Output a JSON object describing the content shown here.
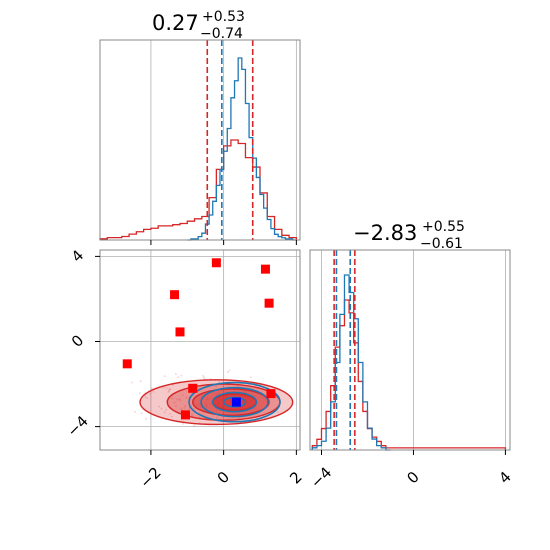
{
  "chart_data": {
    "type": "corner",
    "parameters": [
      {
        "title": {
          "median": "0.27",
          "plus": "+0.53",
          "minus": "−0.74"
        },
        "range": [
          -3.4,
          2.1
        ],
        "ticks": [
          -2,
          0,
          2
        ],
        "tick_labels": [
          "−2",
          "0",
          "2"
        ],
        "markers": {
          "blue": [
            -0.05
          ],
          "red": [
            -0.45,
            0.8
          ]
        },
        "hist_blue": {
          "bins": [
            -1.0,
            -0.9,
            -0.8,
            -0.7,
            -0.6,
            -0.5,
            -0.4,
            -0.3,
            -0.2,
            -0.1,
            0.0,
            0.1,
            0.2,
            0.3,
            0.4,
            0.5,
            0.6,
            0.7,
            0.8,
            0.9,
            1.0,
            1.1,
            1.2,
            1.3,
            1.4,
            1.5,
            1.6,
            1.7,
            1.8,
            1.9,
            2.0
          ],
          "counts": [
            0,
            1,
            1,
            3,
            6,
            14,
            22,
            34,
            48,
            62,
            78,
            98,
            125,
            140,
            160,
            150,
            120,
            90,
            72,
            55,
            40,
            28,
            18,
            10,
            5,
            3,
            2,
            1,
            1,
            0
          ]
        },
        "hist_red": {
          "bins": [
            -3.4,
            -3.2,
            -3.0,
            -2.8,
            -2.6,
            -2.4,
            -2.2,
            -2.0,
            -1.8,
            -1.6,
            -1.4,
            -1.2,
            -1.0,
            -0.8,
            -0.6,
            -0.4,
            -0.2,
            0.0,
            0.2,
            0.4,
            0.6,
            0.8,
            1.0,
            1.2,
            1.4,
            1.6,
            1.8,
            2.0
          ],
          "counts": [
            1,
            2,
            2,
            3,
            5,
            7,
            9,
            10,
            12,
            12,
            13,
            14,
            16,
            18,
            20,
            36,
            60,
            80,
            85,
            82,
            70,
            62,
            40,
            20,
            9,
            4,
            2
          ]
        }
      },
      {
        "title": {
          "median": "−2.83",
          "plus": "+0.55",
          "minus": "−0.61"
        },
        "range": [
          -4.5,
          4.2
        ],
        "ticks": [
          -4,
          0,
          4
        ],
        "tick_labels": [
          "−4",
          "0",
          "4"
        ],
        "markers": {
          "blue": [
            -2.75,
            -3.35
          ],
          "red": [
            -3.45,
            -2.55
          ]
        },
        "hist_blue": {
          "bins": [
            -4.4,
            -4.2,
            -4.0,
            -3.8,
            -3.6,
            -3.4,
            -3.2,
            -3.0,
            -2.8,
            -2.6,
            -2.4,
            -2.2,
            -2.0,
            -1.8,
            -1.6,
            -1.4,
            -1.2,
            -1.0
          ],
          "counts": [
            1,
            2,
            4,
            10,
            22,
            40,
            62,
            80,
            72,
            60,
            40,
            22,
            10,
            5,
            2,
            1,
            0
          ]
        },
        "hist_red": {
          "bins": [
            -4.4,
            -4.2,
            -4.0,
            -3.8,
            -3.6,
            -3.4,
            -3.2,
            -3.0,
            -2.8,
            -2.6,
            -2.4,
            -2.2,
            -2.0,
            -1.8,
            -1.6,
            -1.4,
            -1.2,
            -1.0,
            0.0,
            2.0,
            4.0
          ],
          "counts": [
            2,
            5,
            10,
            18,
            30,
            48,
            58,
            70,
            64,
            50,
            32,
            18,
            10,
            6,
            4,
            2,
            1,
            1,
            1,
            1
          ]
        }
      }
    ],
    "scatter_2d": {
      "x_ticks": [
        -2,
        0,
        2
      ],
      "x_tick_labels": [
        "−2",
        "0",
        "2"
      ],
      "y_ticks": [
        -4,
        0,
        4
      ],
      "y_tick_labels": [
        "−4",
        "0",
        "4"
      ],
      "x_range": [
        -3.4,
        2.1
      ],
      "y_range": [
        -5.1,
        4.3
      ],
      "red_squares": [
        {
          "x": -0.2,
          "y": 3.7
        },
        {
          "x": 1.15,
          "y": 3.4
        },
        {
          "x": -1.35,
          "y": 2.2
        },
        {
          "x": 1.25,
          "y": 1.8
        },
        {
          "x": -1.2,
          "y": 0.45
        },
        {
          "x": -2.65,
          "y": -1.05
        },
        {
          "x": -0.85,
          "y": -2.2
        },
        {
          "x": 1.3,
          "y": -2.45
        },
        {
          "x": -1.05,
          "y": -3.45
        }
      ],
      "blue_square": {
        "x": 0.35,
        "y": -2.85
      },
      "red_contours": [
        {
          "cx": -0.2,
          "cy": -2.85,
          "rx": 2.1,
          "ry": 1.05
        },
        {
          "cx": 0.0,
          "cy": -2.85,
          "rx": 1.55,
          "ry": 0.85
        },
        {
          "cx": 0.2,
          "cy": -2.85,
          "rx": 1.05,
          "ry": 0.62
        },
        {
          "cx": 0.3,
          "cy": -2.85,
          "rx": 0.6,
          "ry": 0.38
        }
      ],
      "blue_contours": [
        {
          "cx": 0.3,
          "cy": -2.85,
          "rx": 1.25,
          "ry": 0.92
        },
        {
          "cx": 0.3,
          "cy": -2.85,
          "rx": 0.92,
          "ry": 0.68
        },
        {
          "cx": 0.3,
          "cy": -2.85,
          "rx": 0.6,
          "ry": 0.45
        },
        {
          "cx": 0.3,
          "cy": -2.85,
          "rx": 0.3,
          "ry": 0.22
        }
      ]
    },
    "colors": {
      "blue": "#1f77b4",
      "red": "#d62728",
      "red_marker": "#ff0000",
      "blue_marker": "#0000ff",
      "grid": "#b0b0b0"
    }
  }
}
